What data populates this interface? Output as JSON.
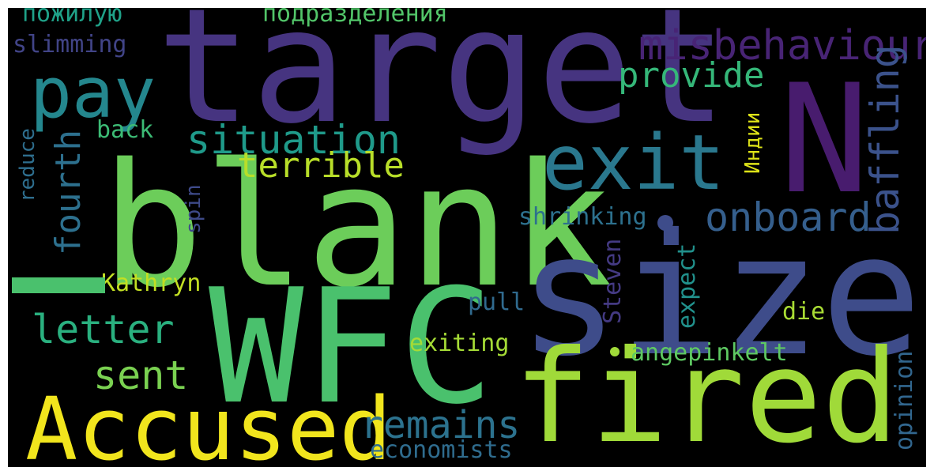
{
  "word_cloud": {
    "words": [
      {
        "text": "target",
        "color": "#463480"
      },
      {
        "text": "blank",
        "color": "#6ccd5a"
      },
      {
        "text": "size",
        "color": "#3e4c8a"
      },
      {
        "text": "WFC",
        "color": "#4ac16d"
      },
      {
        "text": "N",
        "color": "#481c6e"
      },
      {
        "text": "fired",
        "color": "#a0da39"
      },
      {
        "text": "Accused",
        "color": "#f1e51d"
      },
      {
        "text": "exit",
        "color": "#2a788e"
      },
      {
        "text": "pay",
        "color": "#24878e"
      },
      {
        "text": "misbehaviour",
        "color": "#482475"
      },
      {
        "text": "situation",
        "color": "#1f9a8a"
      },
      {
        "text": "onboard",
        "color": "#355f8d"
      },
      {
        "text": "provide",
        "color": "#35b779"
      },
      {
        "text": "terrible",
        "color": "#b8de29"
      },
      {
        "text": "baffling",
        "color": "#3b528b"
      },
      {
        "text": "remains",
        "color": "#2c728e"
      },
      {
        "text": "letter",
        "color": "#2ab07f"
      },
      {
        "text": "sent",
        "color": "#7ad151"
      },
      {
        "text": "fourth",
        "color": "#2d708e"
      },
      {
        "text": "exiting",
        "color": "#a5db36"
      },
      {
        "text": "shrinking",
        "color": "#2d718e"
      },
      {
        "text": "Kathryn",
        "color": "#c2df23"
      },
      {
        "text": "angepinkelt",
        "color": "#5ec962"
      },
      {
        "text": "economists",
        "color": "#2f6c8e"
      },
      {
        "text": "pull",
        "color": "#306a8e"
      },
      {
        "text": "die",
        "color": "#a8db34"
      },
      {
        "text": "back",
        "color": "#3cbb75"
      },
      {
        "text": "slimming",
        "color": "#414487"
      },
      {
        "text": "пожилую",
        "color": "#1fa188"
      },
      {
        "text": "подразделения",
        "color": "#52c569"
      },
      {
        "text": "Steven",
        "color": "#443a83"
      },
      {
        "text": "expect",
        "color": "#21918c"
      },
      {
        "text": "opinion",
        "color": "#31668e"
      },
      {
        "text": "reduce",
        "color": "#2e6e8e"
      },
      {
        "text": "spin",
        "color": "#3e4a89"
      },
      {
        "text": "Индии",
        "color": "#dde318"
      },
      {
        "text": "",
        "color": "#4ac16d"
      }
    ]
  }
}
